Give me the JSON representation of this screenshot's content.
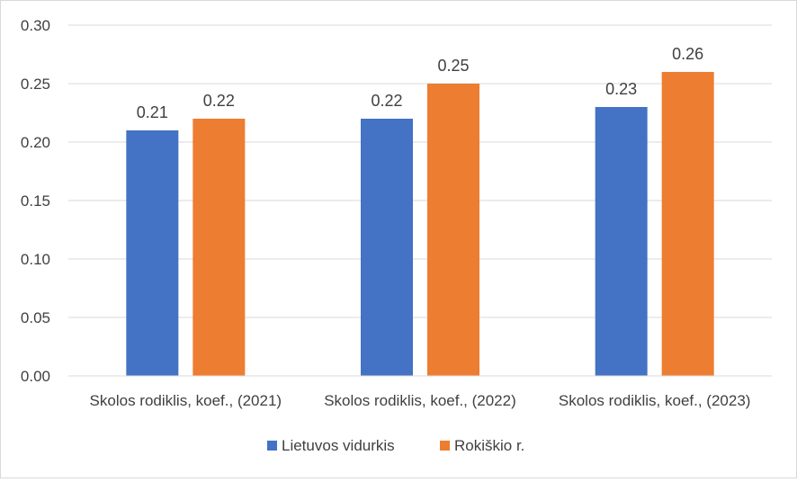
{
  "chart_data": {
    "type": "bar",
    "title": "",
    "xlabel": "",
    "ylabel": "",
    "categories": [
      "Skolos rodiklis, koef., (2021)",
      "Skolos rodiklis, koef., (2022)",
      "Skolos rodiklis, koef., (2023)"
    ],
    "series": [
      {
        "name": "Lietuvos vidurkis",
        "values": [
          0.21,
          0.22,
          0.23
        ],
        "labels": [
          "0.21",
          "0.22",
          "0.23"
        ],
        "color": "#4472C4"
      },
      {
        "name": "Rokiškio r.",
        "values": [
          0.22,
          0.25,
          0.26
        ],
        "labels": [
          "0.22",
          "0.25",
          "0.26"
        ],
        "color": "#ED7D31"
      }
    ],
    "ylim": [
      0,
      0.3
    ],
    "yticks": [
      "0.00",
      "0.05",
      "0.10",
      "0.15",
      "0.20",
      "0.25",
      "0.30"
    ],
    "grid": true,
    "legend_position": "bottom"
  }
}
